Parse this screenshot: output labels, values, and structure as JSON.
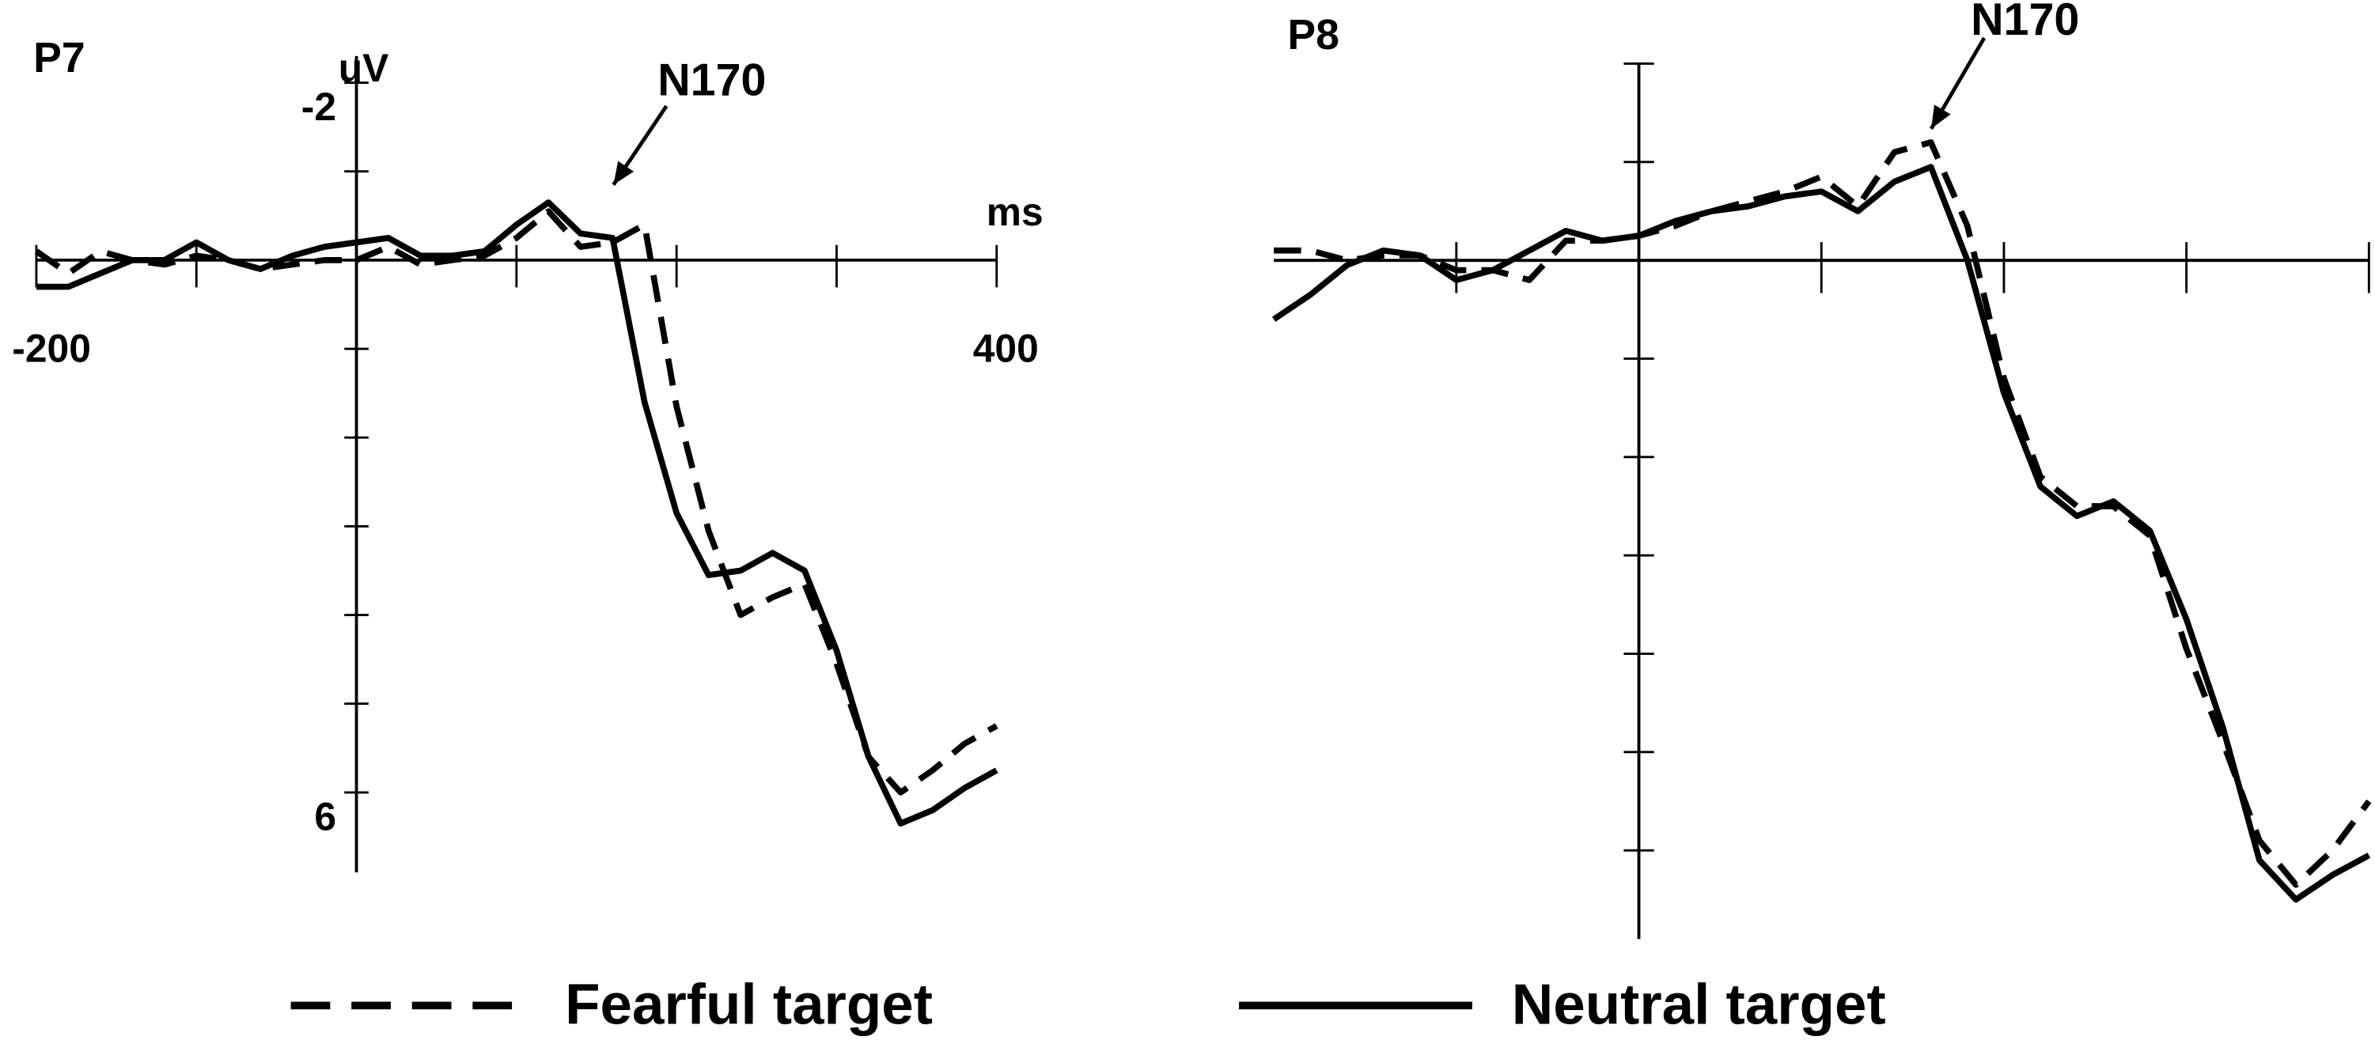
{
  "chart_data": [
    {
      "type": "line",
      "title": "P7",
      "annotation": "N170",
      "y_label": "uV",
      "x_label": "ms",
      "x": [
        -200,
        -180,
        -160,
        -140,
        -120,
        -100,
        -80,
        -60,
        -40,
        -20,
        0,
        20,
        40,
        60,
        80,
        100,
        120,
        140,
        160,
        180,
        200,
        220,
        240,
        260,
        280,
        300,
        320,
        340,
        360,
        380,
        400
      ],
      "series": [
        {
          "name": "Fearful target",
          "color": "#000000",
          "dashed": true,
          "values": [
            -0.1,
            0.15,
            -0.1,
            0,
            0.05,
            -0.05,
            0,
            0.1,
            0.05,
            0,
            0,
            -0.15,
            0.05,
            0,
            -0.05,
            -0.25,
            -0.55,
            -0.15,
            -0.2,
            -0.4,
            1.65,
            3.05,
            4.0,
            3.8,
            3.65,
            4.55,
            5.6,
            6.0,
            5.75,
            5.45,
            5.25
          ]
        },
        {
          "name": "Neutral target",
          "color": "#000000",
          "dashed": false,
          "values": [
            0.3,
            0.3,
            0.15,
            0,
            0,
            -0.2,
            0,
            0.1,
            -0.05,
            -0.15,
            -0.2,
            -0.25,
            -0.05,
            -0.05,
            -0.1,
            -0.4,
            -0.65,
            -0.3,
            -0.25,
            1.6,
            2.85,
            3.55,
            3.5,
            3.3,
            3.5,
            4.4,
            5.6,
            6.35,
            6.2,
            5.95,
            5.75
          ]
        }
      ],
      "xlim": [
        -200,
        400
      ],
      "ylim": [
        -2.3,
        6.9
      ],
      "y_inverted": true,
      "xticks": [
        -200,
        {
          "value": -100,
          "label": null
        },
        {
          "value": 0,
          "label": null
        },
        {
          "value": 100,
          "label": null
        },
        {
          "value": 200,
          "label": null
        },
        {
          "value": 300,
          "label": null
        },
        400
      ],
      "yticks": [
        -2,
        {
          "value": -1,
          "label": null
        },
        {
          "value": 0,
          "label": null
        },
        {
          "value": 1,
          "label": null
        },
        {
          "value": 2,
          "label": null
        },
        {
          "value": 3,
          "label": null
        },
        {
          "value": 4,
          "label": null
        },
        {
          "value": 5,
          "label": null
        },
        6
      ]
    },
    {
      "type": "line",
      "title": "P8",
      "annotation": "N170",
      "x": [
        -200,
        -180,
        -160,
        -140,
        -120,
        -100,
        -80,
        -60,
        -40,
        -20,
        0,
        20,
        40,
        60,
        80,
        100,
        120,
        140,
        160,
        180,
        200,
        220,
        240,
        260,
        280,
        300,
        320,
        340,
        360,
        380,
        400
      ],
      "series": [
        {
          "name": "Fearful target",
          "color": "#000000",
          "dashed": true,
          "values": [
            -0.1,
            -0.1,
            0,
            -0.05,
            -0.05,
            0.1,
            0.1,
            0.2,
            -0.2,
            -0.2,
            -0.25,
            -0.35,
            -0.5,
            -0.6,
            -0.7,
            -0.85,
            -0.55,
            -1.1,
            -1.2,
            -0.35,
            1.2,
            2.2,
            2.5,
            2.5,
            2.8,
            3.95,
            4.9,
            5.9,
            6.35,
            6.0,
            5.5
          ]
        },
        {
          "name": "Neutral target",
          "color": "#000000",
          "dashed": false,
          "values": [
            0.6,
            0.35,
            0.05,
            -0.1,
            -0.05,
            0.2,
            0.1,
            -0.1,
            -0.3,
            -0.2,
            -0.25,
            -0.4,
            -0.5,
            -0.55,
            -0.65,
            -0.7,
            -0.5,
            -0.8,
            -0.95,
            0,
            1.35,
            2.3,
            2.6,
            2.45,
            2.75,
            3.65,
            4.75,
            6.1,
            6.5,
            6.25,
            6.05
          ]
        }
      ],
      "xlim": [
        -200,
        400
      ],
      "ylim": [
        -2,
        6.9
      ],
      "y_inverted": true,
      "xticks": [
        {
          "value": -100,
          "label": null
        },
        {
          "value": 0,
          "label": null
        },
        {
          "value": 100,
          "label": null
        },
        {
          "value": 200,
          "label": null
        },
        {
          "value": 300,
          "label": null
        },
        {
          "value": 400,
          "label": null
        }
      ],
      "yticks": [
        {
          "value": -2,
          "label": null
        },
        {
          "value": -1,
          "label": null
        },
        {
          "value": 0,
          "label": null
        },
        {
          "value": 1,
          "label": null
        },
        {
          "value": 2,
          "label": null
        },
        {
          "value": 3,
          "label": null
        },
        {
          "value": 4,
          "label": null
        },
        {
          "value": 5,
          "label": null
        },
        {
          "value": 6,
          "label": null
        }
      ]
    }
  ]
}
